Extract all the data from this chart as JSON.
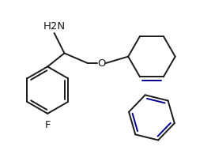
{
  "bg_color": "#ffffff",
  "line_color": "#1a1a1a",
  "bond_lw": 1.4,
  "aromatic_color": "#00008B",
  "label_fontsize": 9.5,
  "nh2_label": "H2N",
  "o_label": "O",
  "f_label": "F"
}
